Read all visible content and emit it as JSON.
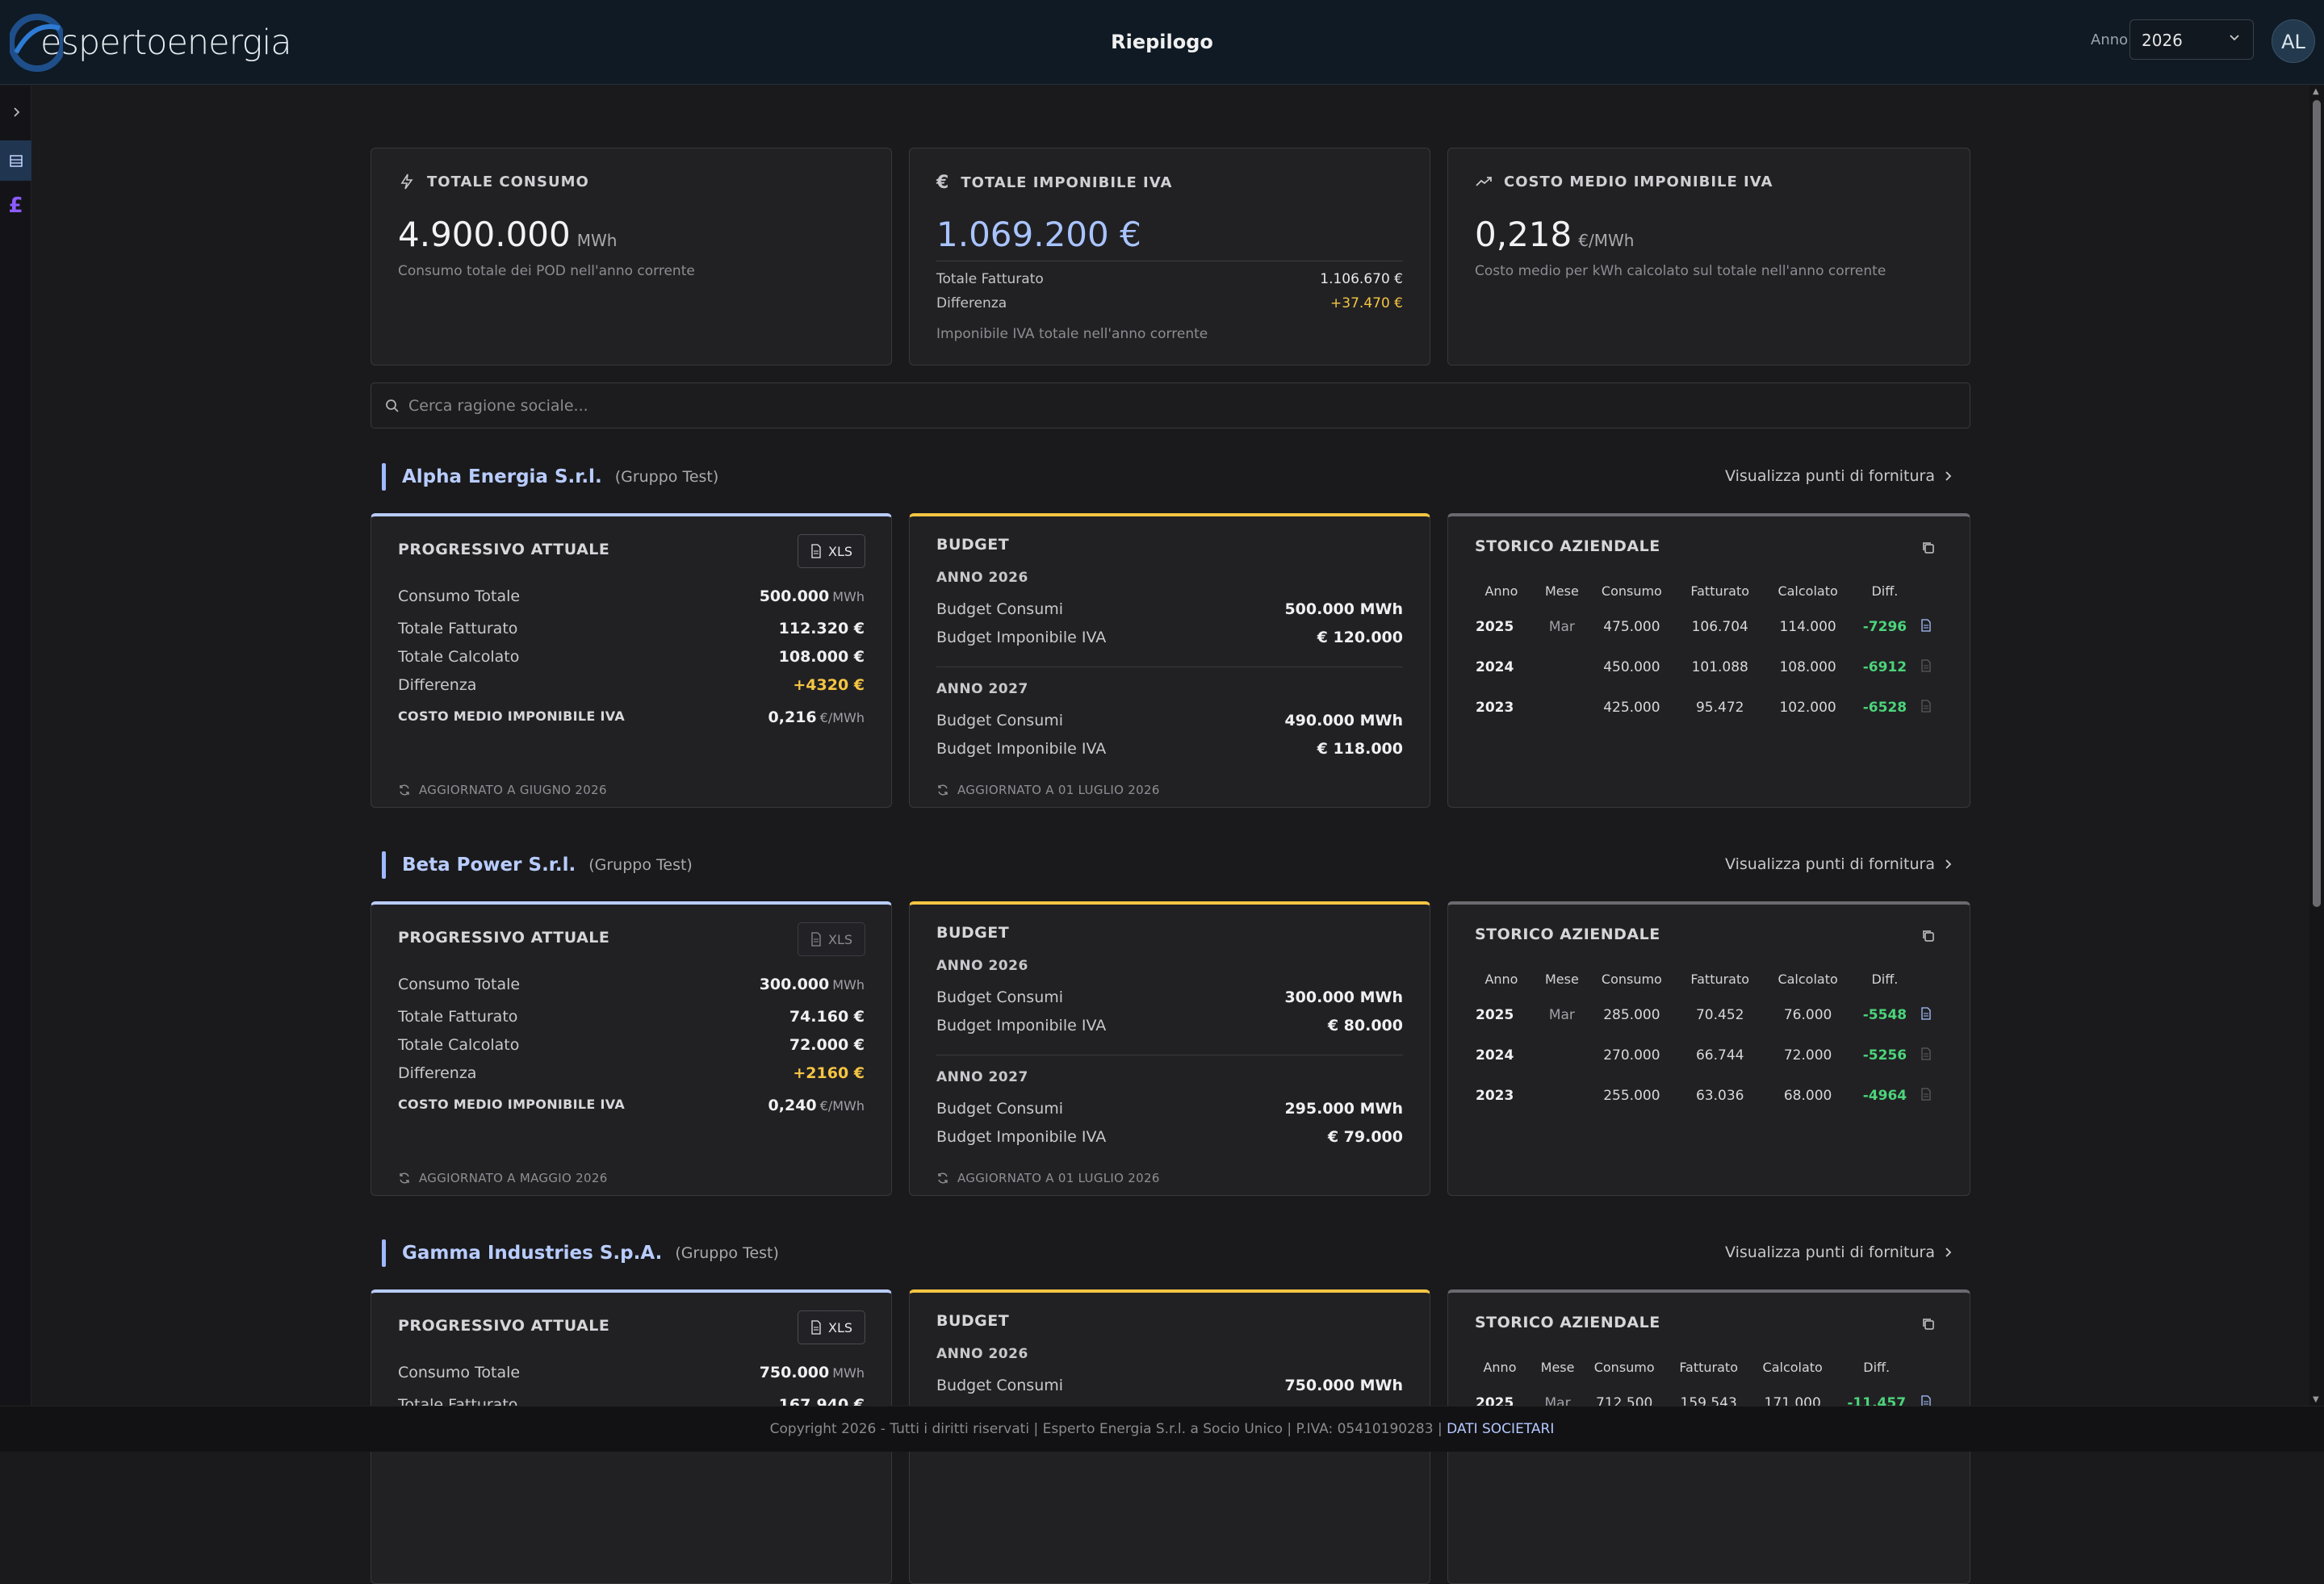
{
  "header": {
    "brand": "espertoenergia",
    "title": "Riepilogo",
    "year_label": "Anno",
    "year_value": "2026",
    "avatar": "AL"
  },
  "stats": {
    "consumo": {
      "title": "TOTALE CONSUMO",
      "value": "4.900.000",
      "unit": "MWh",
      "sub": "Consumo totale dei POD nell'anno corrente",
      "icon": "lightning-icon"
    },
    "imponibile": {
      "title": "TOTALE IMPONIBILE IVA",
      "value": "1.069.200 €",
      "fatturato_label": "Totale Fatturato",
      "fatturato_value": "1.106.670 €",
      "diff_label": "Differenza",
      "diff_value": "+37.470 €",
      "sub": "Imponibile IVA totale nell'anno corrente",
      "icon": "euro-icon"
    },
    "costo": {
      "title": "COSTO MEDIO IMPONIBILE IVA",
      "value": "0,218",
      "unit": "€/MWh",
      "sub": "Costo medio per kWh calcolato sul totale nell'anno corrente",
      "icon": "trend-up-icon"
    }
  },
  "search": {
    "placeholder": "Cerca ragione sociale..."
  },
  "labels": {
    "viz_link": "Visualizza punti di fornitura",
    "progressivo": "PROGRESSIVO ATTUALE",
    "xls": "XLS",
    "consumo_totale": "Consumo Totale",
    "totale_fatturato": "Totale Fatturato",
    "totale_calcolato": "Totale Calcolato",
    "differenza": "Differenza",
    "costo_medio": "COSTO MEDIO IMPONIBILE IVA",
    "budget": "BUDGET",
    "budget_consumi": "Budget Consumi",
    "budget_imponibile": "Budget Imponibile IVA",
    "storico": "STORICO AZIENDALE",
    "col_anno": "Anno",
    "col_mese": "Mese",
    "col_consumo": "Consumo",
    "col_fatturato": "Fatturato",
    "col_calcolato": "Calcolato",
    "col_diff": "Diff.",
    "mwh": "MWh",
    "emwh": "€/MWh"
  },
  "companies": [
    {
      "name": "Alpha Energia S.r.l.",
      "group": "(Gruppo Test)",
      "progressivo": {
        "consumo": "500.000",
        "fatturato": "112.320 €",
        "calcolato": "108.000 €",
        "differenza": "+4320 €",
        "costo": "0,216",
        "updated": "AGGIORNATO A GIUGNO 2026",
        "xls_enabled": true
      },
      "budget": [
        {
          "year": "ANNO 2026",
          "consumi": "500.000 MWh",
          "imponibile": "€ 120.000"
        },
        {
          "year": "ANNO 2027",
          "consumi": "490.000 MWh",
          "imponibile": "€ 118.000"
        }
      ],
      "budget_updated": "AGGIORNATO A 01 LUGLIO 2026",
      "storico": [
        {
          "anno": "2025",
          "mese": "Mar",
          "consumo": "475.000",
          "fatturato": "106.704",
          "calcolato": "114.000",
          "diff": "-7296",
          "doc": true
        },
        {
          "anno": "2024",
          "mese": "",
          "consumo": "450.000",
          "fatturato": "101.088",
          "calcolato": "108.000",
          "diff": "-6912",
          "doc": false
        },
        {
          "anno": "2023",
          "mese": "",
          "consumo": "425.000",
          "fatturato": "95.472",
          "calcolato": "102.000",
          "diff": "-6528",
          "doc": false
        }
      ]
    },
    {
      "name": "Beta Power S.r.l.",
      "group": "(Gruppo Test)",
      "progressivo": {
        "consumo": "300.000",
        "fatturato": "74.160 €",
        "calcolato": "72.000 €",
        "differenza": "+2160 €",
        "costo": "0,240",
        "updated": "AGGIORNATO A MAGGIO 2026",
        "xls_enabled": false
      },
      "budget": [
        {
          "year": "ANNO 2026",
          "consumi": "300.000 MWh",
          "imponibile": "€ 80.000"
        },
        {
          "year": "ANNO 2027",
          "consumi": "295.000 MWh",
          "imponibile": "€ 79.000"
        }
      ],
      "budget_updated": "AGGIORNATO A 01 LUGLIO 2026",
      "storico": [
        {
          "anno": "2025",
          "mese": "Mar",
          "consumo": "285.000",
          "fatturato": "70.452",
          "calcolato": "76.000",
          "diff": "-5548",
          "doc": true
        },
        {
          "anno": "2024",
          "mese": "",
          "consumo": "270.000",
          "fatturato": "66.744",
          "calcolato": "72.000",
          "diff": "-5256",
          "doc": false
        },
        {
          "anno": "2023",
          "mese": "",
          "consumo": "255.000",
          "fatturato": "63.036",
          "calcolato": "68.000",
          "diff": "-4964",
          "doc": false
        }
      ]
    },
    {
      "name": "Gamma Industries S.p.A.",
      "group": "(Gruppo Test)",
      "progressivo": {
        "consumo": "750.000",
        "fatturato": "167.940 €"
      },
      "budget": [
        {
          "year": "ANNO 2026",
          "consumi": "750.000 MWh"
        }
      ],
      "storico": [
        {
          "anno": "2025",
          "mese": "Mar",
          "consumo": "712.500",
          "fatturato": "159.543",
          "calcolato": "171.000",
          "diff": "-11.457",
          "doc": true
        }
      ]
    }
  ],
  "footer": {
    "text": "Copyright 2026 - Tutti i diritti riservati | Esperto Energia S.r.l. a Socio Unico | P.IVA: 05410190283 | ",
    "link": "DATI SOCIETARI"
  }
}
